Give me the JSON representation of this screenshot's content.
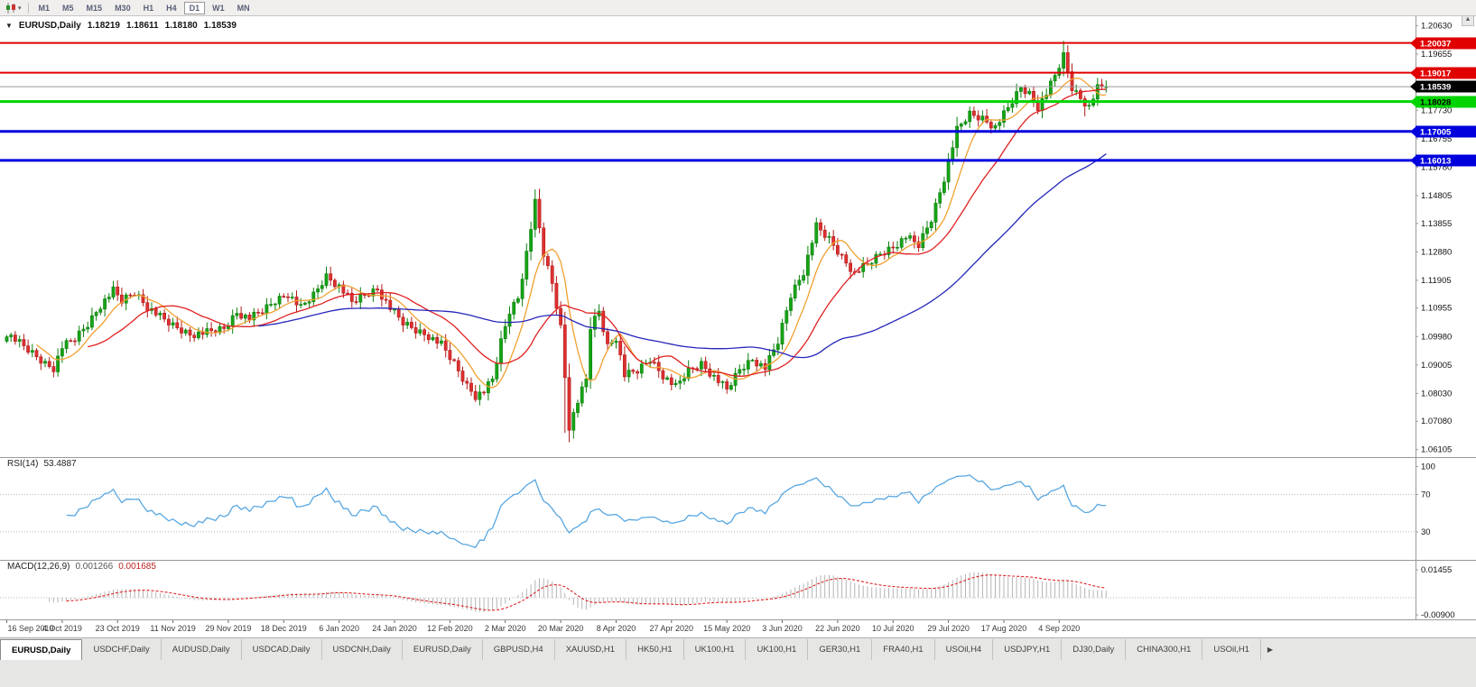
{
  "toolbar": {
    "chart_icon": "candlestick-chart-icon",
    "timeframes": [
      "M1",
      "M5",
      "M15",
      "M30",
      "H1",
      "H4",
      "D1",
      "W1",
      "MN"
    ],
    "active_timeframe": "D1"
  },
  "chart_header": {
    "collapse_arrow": "▼",
    "symbol": "EURUSD,Daily",
    "open": "1.18219",
    "high": "1.18611",
    "low": "1.18180",
    "close": "1.18539"
  },
  "price_axis": {
    "labels": [
      "1.20630",
      "1.19655",
      "1.17730",
      "1.16755",
      "1.15780",
      "1.14805",
      "1.13855",
      "1.12880",
      "1.11905",
      "1.10955",
      "1.09980",
      "1.09005",
      "1.08030",
      "1.07080",
      "1.06105"
    ]
  },
  "levels": [
    {
      "price": 1.20037,
      "label": "1.20037",
      "color": "#e00000",
      "text_color": "#ffffff",
      "width": 2
    },
    {
      "price": 1.19017,
      "label": "1.19017",
      "color": "#e00000",
      "text_color": "#ffffff",
      "width": 2
    },
    {
      "price": 1.18028,
      "label": "1.18028",
      "color": "#00d400",
      "text_color": "#000000",
      "width": 3
    },
    {
      "price": 1.17005,
      "label": "1.17005",
      "color": "#0000dd",
      "text_color": "#ffffff",
      "width": 3
    },
    {
      "price": 1.16013,
      "label": "1.16013",
      "color": "#0000dd",
      "text_color": "#ffffff",
      "width": 3
    }
  ],
  "current_price": {
    "price": 1.18539,
    "label": "1.18539",
    "badge_color": "#000000",
    "text_color": "#ffffff",
    "line_color": "#9a9a9a"
  },
  "indicators": {
    "rsi": {
      "name": "RSI(14)",
      "value": "53.4887",
      "axis_labels": [
        "100",
        "70",
        "30"
      ],
      "level_lines": [
        70,
        30
      ],
      "line_color": "#57a7e2"
    },
    "macd": {
      "name": "MACD(12,26,9)",
      "value_main": "0.001266",
      "value_signal": "0.001685",
      "axis_labels": [
        "0.01455",
        "-0.00900"
      ],
      "hist_color": "#b4b4b4",
      "signal_color": "#e02020"
    }
  },
  "date_axis": [
    "16 Sep 2019",
    "4 Oct 2019",
    "23 Oct 2019",
    "11 Nov 2019",
    "29 Nov 2019",
    "18 Dec 2019",
    "6 Jan 2020",
    "24 Jan 2020",
    "12 Feb 2020",
    "2 Mar 2020",
    "20 Mar 2020",
    "8 Apr 2020",
    "27 Apr 2020",
    "15 May 2020",
    "3 Jun 2020",
    "22 Jun 2020",
    "10 Jul 2020",
    "29 Jul 2020",
    "17 Aug 2020",
    "4 Sep 2020"
  ],
  "tabs": {
    "items": [
      "EURUSD,Daily",
      "USDCHF,Daily",
      "AUDUSD,Daily",
      "USDCAD,Daily",
      "USDCNH,Daily",
      "EURUSD,Daily",
      "GBPUSD,H4",
      "XAUUSD,H1",
      "HK50,H1",
      "UK100,H1",
      "UK100,H1",
      "GER30,H1",
      "FRA40,H1",
      "USOil,H4",
      "USDJPY,H1",
      "DJ30,Daily",
      "CHINA300,H1",
      "USOil,H1"
    ],
    "active_index": 0,
    "scroll_right_arrow": "▶"
  },
  "chart_data": {
    "type": "candlestick",
    "symbol": "EURUSD",
    "timeframe": "Daily",
    "bars": 259,
    "x_range": [
      "16 Sep 2019",
      "14 Sep 2020"
    ],
    "price_view": {
      "top": 1.2095,
      "bottom": 1.0585
    },
    "last_bar_ohlc": {
      "open": 1.18219,
      "high": 1.18611,
      "low": 1.1818,
      "close": 1.18539
    },
    "close_anchors": [
      [
        0,
        1.101
      ],
      [
        3,
        1.0975
      ],
      [
        6,
        1.094
      ],
      [
        9,
        1.0905
      ],
      [
        11,
        1.089
      ],
      [
        13,
        1.0962
      ],
      [
        16,
        1.099
      ],
      [
        19,
        1.104
      ],
      [
        22,
        1.1105
      ],
      [
        25,
        1.1155
      ],
      [
        27,
        1.112
      ],
      [
        30,
        1.115
      ],
      [
        33,
        1.11
      ],
      [
        36,
        1.1065
      ],
      [
        39,
        1.1035
      ],
      [
        43,
        1.1005
      ],
      [
        47,
        1.1012
      ],
      [
        51,
        1.1025
      ],
      [
        54,
        1.108
      ],
      [
        57,
        1.106
      ],
      [
        60,
        1.1085
      ],
      [
        63,
        1.112
      ],
      [
        66,
        1.1145
      ],
      [
        69,
        1.1095
      ],
      [
        72,
        1.114
      ],
      [
        75,
        1.1205
      ],
      [
        78,
        1.117
      ],
      [
        81,
        1.1115
      ],
      [
        84,
        1.114
      ],
      [
        87,
        1.116
      ],
      [
        90,
        1.1095
      ],
      [
        93,
        1.1045
      ],
      [
        96,
        1.102
      ],
      [
        99,
        1.1
      ],
      [
        102,
        1.097
      ],
      [
        105,
        1.0905
      ],
      [
        108,
        1.083
      ],
      [
        110,
        1.0795
      ],
      [
        112,
        1.081
      ],
      [
        114,
        1.085
      ],
      [
        116,
        1.098
      ],
      [
        118,
        1.1085
      ],
      [
        120,
        1.113
      ],
      [
        122,
        1.1285
      ],
      [
        124,
        1.1455
      ],
      [
        126,
        1.128
      ],
      [
        128,
        1.118
      ],
      [
        130,
        1.103
      ],
      [
        132,
        1.069
      ],
      [
        134,
        1.0775
      ],
      [
        136,
        1.085
      ],
      [
        137,
        1.103
      ],
      [
        139,
        1.1085
      ],
      [
        141,
        1.0965
      ],
      [
        143,
        1.0995
      ],
      [
        145,
        1.0865
      ],
      [
        148,
        1.088
      ],
      [
        151,
        1.092
      ],
      [
        154,
        1.0865
      ],
      [
        157,
        1.0825
      ],
      [
        160,
        1.088
      ],
      [
        163,
        1.0905
      ],
      [
        166,
        1.086
      ],
      [
        169,
        1.0815
      ],
      [
        172,
        1.0885
      ],
      [
        175,
        1.092
      ],
      [
        178,
        1.089
      ],
      [
        181,
        1.098
      ],
      [
        184,
        1.114
      ],
      [
        187,
        1.122
      ],
      [
        190,
        1.1375
      ],
      [
        193,
        1.133
      ],
      [
        196,
        1.127
      ],
      [
        199,
        1.1215
      ],
      [
        202,
        1.1245
      ],
      [
        205,
        1.128
      ],
      [
        208,
        1.1305
      ],
      [
        211,
        1.134
      ],
      [
        214,
        1.131
      ],
      [
        217,
        1.14
      ],
      [
        220,
        1.154
      ],
      [
        223,
        1.1705
      ],
      [
        226,
        1.176
      ],
      [
        229,
        1.1745
      ],
      [
        232,
        1.1715
      ],
      [
        235,
        1.178
      ],
      [
        238,
        1.185
      ],
      [
        240,
        1.183
      ],
      [
        242,
        1.1785
      ],
      [
        244,
        1.183
      ],
      [
        246,
        1.189
      ],
      [
        248,
        1.196
      ],
      [
        250,
        1.185
      ],
      [
        252,
        1.1815
      ],
      [
        254,
        1.1785
      ],
      [
        256,
        1.1848
      ],
      [
        258,
        1.18539
      ]
    ],
    "wick_overrides": [
      {
        "i": 131,
        "low": 1.0668
      },
      {
        "i": 132,
        "low": 1.0636
      },
      {
        "i": 248,
        "high": 1.2011
      },
      {
        "i": 253,
        "low": 1.1752
      }
    ],
    "moving_averages": [
      {
        "period": 8,
        "color": "#f0a030"
      },
      {
        "period": 20,
        "color": "#e02020"
      },
      {
        "period": 60,
        "color": "#2525bb"
      }
    ]
  }
}
